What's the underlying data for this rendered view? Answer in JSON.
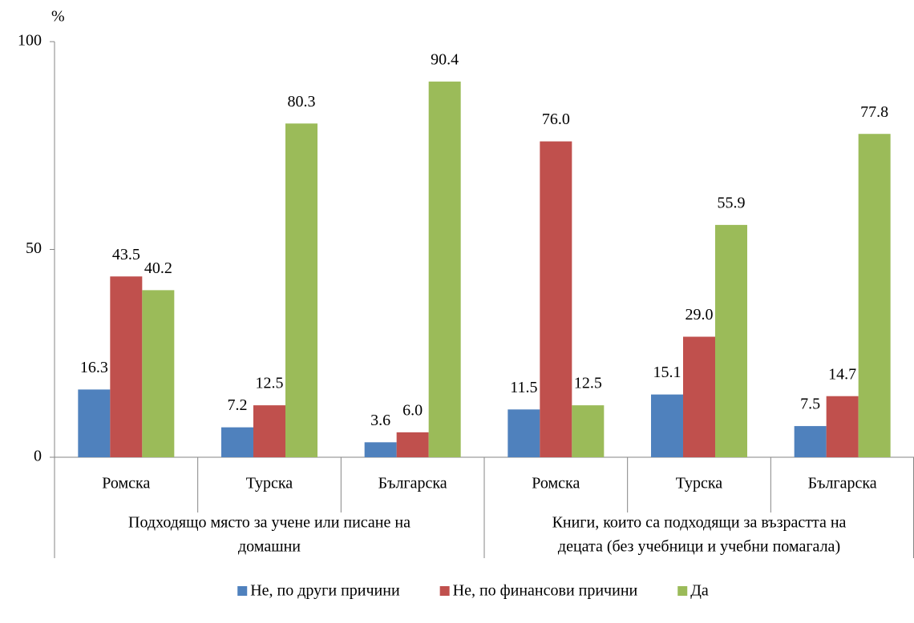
{
  "chart_data": {
    "type": "bar",
    "y_unit": "%",
    "categories": [
      "Ромска",
      "Турска",
      "Българска",
      "Ромска",
      "Турска",
      "Българска"
    ],
    "groups": [
      {
        "lines": [
          "Подходящо място за учене или писане на",
          "домашни"
        ],
        "size": 3
      },
      {
        "lines": [
          "Книги, които са подходящи за възрастта на",
          "децата (без учебници и учебни помагала)"
        ],
        "size": 3
      }
    ],
    "series": [
      {
        "name": "Не, по други причини",
        "color": "#4f81bd",
        "values": [
          16.3,
          7.2,
          3.6,
          11.5,
          15.1,
          7.5
        ],
        "value_labels": [
          "16.3",
          "7.2",
          "3.6",
          "11.5",
          "15.1",
          "7.5"
        ]
      },
      {
        "name": "Не, по финансови причини",
        "color": "#c0504d",
        "values": [
          43.5,
          12.5,
          6.0,
          76.0,
          29.0,
          14.7
        ],
        "value_labels": [
          "43.5",
          "12.5",
          "6.0",
          "76.0",
          "29.0",
          "14.7"
        ]
      },
      {
        "name": "Да",
        "color": "#9bbb59",
        "values": [
          40.2,
          80.3,
          90.4,
          12.5,
          55.9,
          77.8
        ],
        "value_labels": [
          "40.2",
          "80.3",
          "90.4",
          "12.5",
          "55.9",
          "77.8"
        ]
      }
    ],
    "ylim": [
      0,
      100
    ],
    "yticks": [
      0,
      50,
      100
    ],
    "grid": false,
    "legend": "bottom"
  }
}
